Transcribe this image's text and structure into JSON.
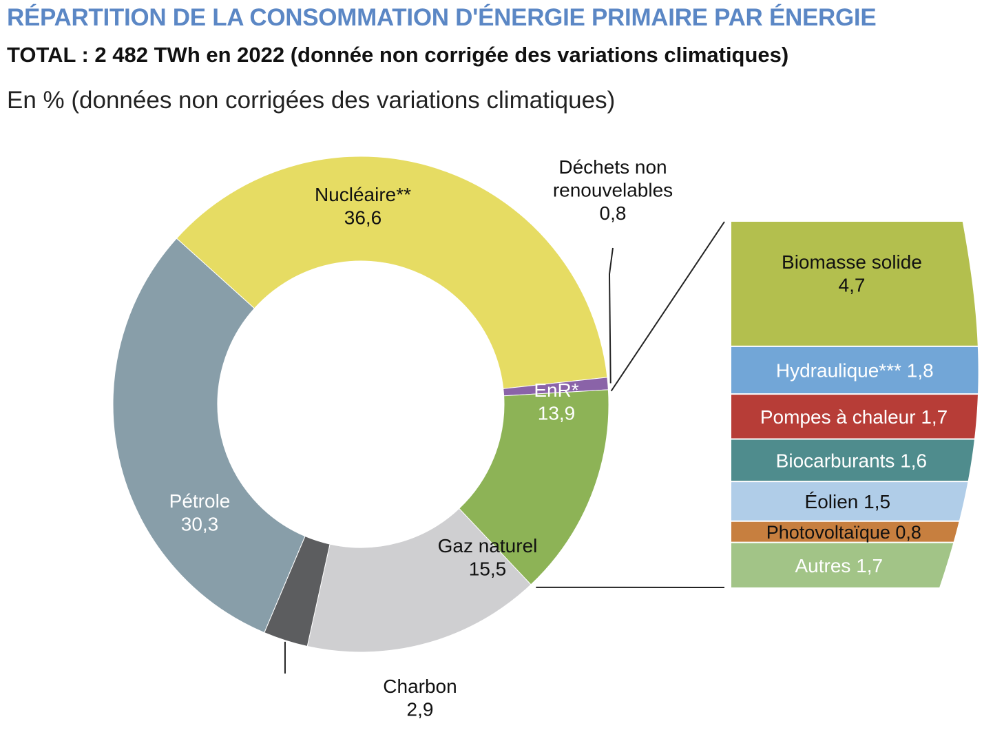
{
  "header": {
    "title": "RÉPARTITION DE LA CONSOMMATION D'ÉNERGIE PRIMAIRE PAR ÉNERGIE",
    "subtitle": "TOTAL : 2 482 TWh en 2022 (donnée non corrigée des variations climatiques)",
    "unit": "En % (données non corrigées des variations climatiques)"
  },
  "chart_data": {
    "type": "pie",
    "variant": "donut-with-breakdown-bar",
    "title": "RÉPARTITION DE LA CONSOMMATION D'ÉNERGIE PRIMAIRE PAR ÉNERGIE",
    "subtitle": "TOTAL : 2 482 TWh en 2022 (donnée non corrigée des variations climatiques)",
    "unit": "En % (données non corrigées des variations climatiques)",
    "slices": [
      {
        "label": "Nucléaire**",
        "value": 36.6,
        "display": "36,6",
        "color": "#e6dc63",
        "text_color": "#111111"
      },
      {
        "label": "Déchets non renouvelables",
        "label_lines": [
          "Déchets non",
          "renouvelables"
        ],
        "value": 0.8,
        "display": "0,8",
        "color": "#8a63a8",
        "text_color": "#111111"
      },
      {
        "label": "EnR*",
        "value": 13.9,
        "display": "13,9",
        "color": "#8db356",
        "text_color": "#ffffff"
      },
      {
        "label": "Gaz naturel",
        "value": 15.5,
        "display": "15,5",
        "color": "#cfcfd1",
        "text_color": "#111111"
      },
      {
        "label": "Charbon",
        "value": 2.9,
        "display": "2,9",
        "color": "#5c5d5f",
        "text_color": "#111111"
      },
      {
        "label": "Pétrole",
        "value": 30.3,
        "display": "30,3",
        "color": "#889ea9",
        "text_color": "#ffffff"
      }
    ],
    "breakdown": {
      "of": "EnR*",
      "items": [
        {
          "label": "Biomasse solide",
          "value": 4.7,
          "display": "4,7",
          "color": "#b3bf4e",
          "text_color": "#111111"
        },
        {
          "label": "Hydraulique***",
          "value": 1.8,
          "display": "1,8",
          "color": "#72a6d7",
          "text_color": "#ffffff"
        },
        {
          "label": "Pompes à chaleur",
          "value": 1.7,
          "display": "1,7",
          "color": "#b73d37",
          "text_color": "#ffffff"
        },
        {
          "label": "Biocarburants",
          "value": 1.6,
          "display": "1,6",
          "color": "#4f8c8d",
          "text_color": "#ffffff"
        },
        {
          "label": "Éolien",
          "value": 1.5,
          "display": "1,5",
          "color": "#b0cde8",
          "text_color": "#111111"
        },
        {
          "label": "Photovoltaïque",
          "value": 0.8,
          "display": "0,8",
          "color": "#c77f3f",
          "text_color": "#111111"
        },
        {
          "label": "Autres",
          "value": 1.7,
          "display": "1,7",
          "color": "#a2c487",
          "text_color": "#ffffff"
        }
      ]
    }
  }
}
